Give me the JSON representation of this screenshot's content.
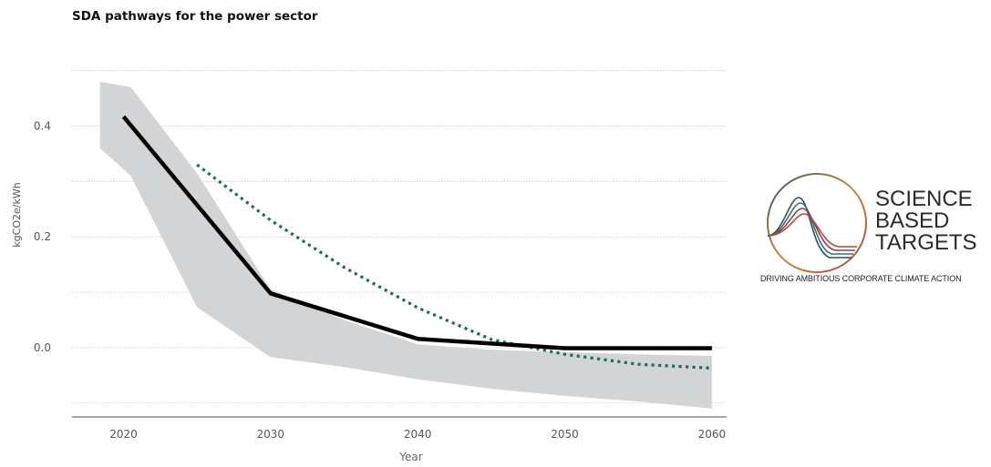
{
  "chart_data": {
    "type": "line",
    "title": "SDA pathways for the power sector",
    "xlabel": "Year",
    "ylabel": "kgCO2e/kWh",
    "xlim": [
      2016.5,
      2061
    ],
    "ylim": [
      -0.125,
      0.565
    ],
    "x_ticks": [
      2020,
      2030,
      2040,
      2050,
      2060
    ],
    "y_ticks": [
      {
        "value": 0.4,
        "label": "0.4"
      },
      {
        "value": 0.2,
        "label": "0.2"
      },
      {
        "value": 0.0,
        "label": "0.0"
      }
    ],
    "y_gridlines": [
      0.5,
      0.4,
      0.3,
      0.2,
      0.1,
      0.0,
      -0.1
    ],
    "grid": true,
    "legend": "none",
    "series": [
      {
        "style": "solid-black",
        "color": "#000000",
        "x": [
          2020,
          2030,
          2040,
          2050,
          2060
        ],
        "y": [
          0.417,
          0.098,
          0.016,
          -0.001,
          -0.001
        ]
      },
      {
        "style": "dotted-teal",
        "color": "#1a6e64",
        "x": [
          2025,
          2030,
          2035,
          2040,
          2045,
          2050,
          2055,
          2060
        ],
        "y": [
          0.33,
          0.23,
          0.145,
          0.072,
          0.015,
          -0.012,
          -0.03,
          -0.037
        ]
      }
    ],
    "band": {
      "color": "#d3d4d6",
      "x": [
        2018.4,
        2020.5,
        2025,
        2030,
        2035,
        2040,
        2045,
        2050,
        2055,
        2060
      ],
      "upper": [
        0.48,
        0.47,
        0.315,
        0.105,
        0.05,
        0.006,
        -0.004,
        -0.008,
        -0.012,
        -0.015
      ],
      "lower": [
        0.36,
        0.31,
        0.073,
        -0.017,
        -0.035,
        -0.057,
        -0.074,
        -0.087,
        -0.097,
        -0.11
      ]
    }
  },
  "logo": {
    "line1": "SCIENCE",
    "line2": "BASED",
    "line3": "TARGETS",
    "tagline": "DRIVING AMBITIOUS CORPORATE CLIMATE ACTION"
  }
}
